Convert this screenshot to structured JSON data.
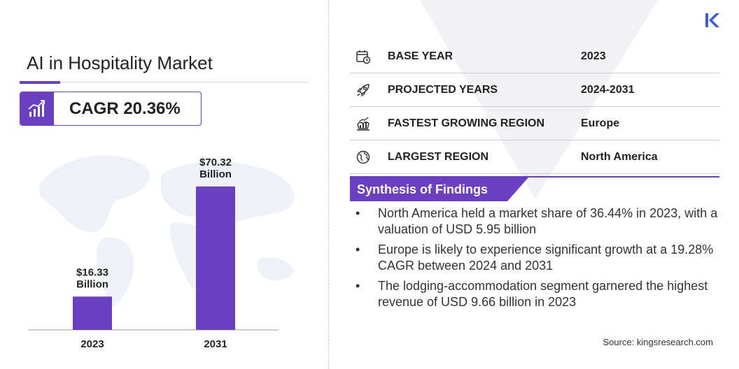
{
  "title": "AI in Hospitality Market",
  "cagr": {
    "text": "CAGR 20.36%"
  },
  "chart_data": {
    "type": "bar",
    "categories": [
      "2023",
      "2031"
    ],
    "values": [
      16.33,
      70.32
    ],
    "data_labels": [
      [
        "$16.33",
        "Billion"
      ],
      [
        "$70.32",
        "Billion"
      ]
    ],
    "unit": "USD Billion",
    "title": "",
    "xlabel": "",
    "ylabel": "",
    "ylim": [
      0,
      85
    ],
    "grid": false,
    "bar_color": "#6a3fc2"
  },
  "stats": [
    {
      "icon": "calendar-icon",
      "label": "BASE YEAR",
      "value": "2023"
    },
    {
      "icon": "rocket-icon",
      "label": "PROJECTED YEARS",
      "value": "2024-2031"
    },
    {
      "icon": "growth-region-icon",
      "label": "FASTEST GROWING REGION",
      "value": "Europe"
    },
    {
      "icon": "globe-icon",
      "label": "LARGEST REGION",
      "value": "North America"
    }
  ],
  "synthesis": {
    "title": "Synthesis of Findings",
    "bullet": "•",
    "items": [
      "North America held a market share of 36.44% in 2023, with a valuation of USD 5.95 billion",
      "Europe is likely to experience significant growth at a 19.28% CAGR between 2024 and 2031",
      "The lodging-accommodation segment garnered the highest revenue of USD 9.66 billion in 2023"
    ]
  },
  "source": "Source:  kingsresearch.com",
  "colors": {
    "accent": "#6a3fc2",
    "accent_light": "#8a52e0",
    "logo": "#3b5fd9",
    "map": "#eef2f8"
  }
}
